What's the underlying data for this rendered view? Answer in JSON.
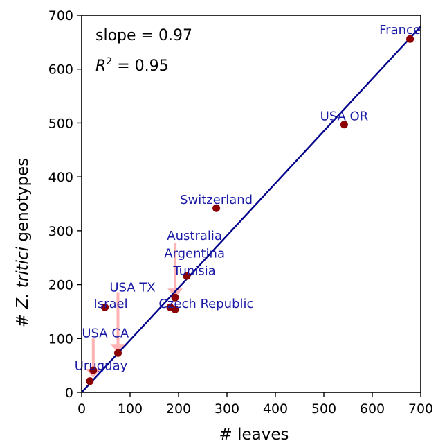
{
  "chart_data": {
    "type": "scatter",
    "title": "",
    "xlabel": "# leaves",
    "ylabel_parts": [
      "# ",
      "Z. tritici",
      " genotypes"
    ],
    "xlim": [
      0,
      700
    ],
    "ylim": [
      0,
      700
    ],
    "xticks": [
      0,
      100,
      200,
      300,
      400,
      500,
      600,
      700
    ],
    "yticks": [
      0,
      100,
      200,
      300,
      400,
      500,
      600,
      700
    ],
    "grid": false,
    "colors": {
      "points": "#8b0000",
      "fit_line": "#00008b",
      "labels": "#1a1aa6",
      "arrows": "#ffb3b3",
      "axes": "#000000"
    },
    "stats": {
      "slope_text": "slope = 0.97",
      "r2_prefix": "R",
      "r2_exp": "2",
      "r2_value": " = 0.95"
    },
    "fit_line": {
      "slope": 0.97,
      "intercept": 0,
      "x_range": [
        0,
        700
      ]
    },
    "points": [
      {
        "x": 678,
        "y": 656
      },
      {
        "x": 542,
        "y": 497
      },
      {
        "x": 278,
        "y": 342
      },
      {
        "x": 217,
        "y": 216
      },
      {
        "x": 193,
        "y": 176
      },
      {
        "x": 183,
        "y": 158
      },
      {
        "x": 193,
        "y": 154
      },
      {
        "x": 48,
        "y": 158
      },
      {
        "x": 75,
        "y": 73
      },
      {
        "x": 24,
        "y": 41
      },
      {
        "x": 17,
        "y": 21
      }
    ],
    "labels": [
      {
        "text": "France",
        "x": 700,
        "y": 665,
        "anchor": "end"
      },
      {
        "text": "USA OR",
        "x": 542,
        "y": 505,
        "anchor": "middle"
      },
      {
        "text": "Switzerland",
        "x": 278,
        "y": 350,
        "anchor": "middle"
      },
      {
        "text": "Australia",
        "x": 233,
        "y": 283,
        "anchor": "middle"
      },
      {
        "text": "Argentina",
        "x": 233,
        "y": 250,
        "anchor": "middle"
      },
      {
        "text": "Tunisia",
        "x": 233,
        "y": 218,
        "anchor": "middle"
      },
      {
        "text": "USA TX",
        "x": 105,
        "y": 187,
        "anchor": "middle"
      },
      {
        "text": "Israel",
        "x": 60,
        "y": 157,
        "anchor": "middle"
      },
      {
        "text": "Czech Republic",
        "x": 257,
        "y": 157,
        "anchor": "middle"
      },
      {
        "text": "USA CA",
        "x": 49,
        "y": 102,
        "anchor": "middle"
      },
      {
        "text": "Uruguay",
        "x": 40,
        "y": 42,
        "anchor": "middle"
      }
    ],
    "arrows": [
      {
        "x": 193,
        "y_from": 278,
        "y_to": 176
      },
      {
        "x": 75,
        "y_from": 186,
        "y_to": 73
      },
      {
        "x": 24,
        "y_from": 100,
        "y_to": 27
      }
    ]
  }
}
